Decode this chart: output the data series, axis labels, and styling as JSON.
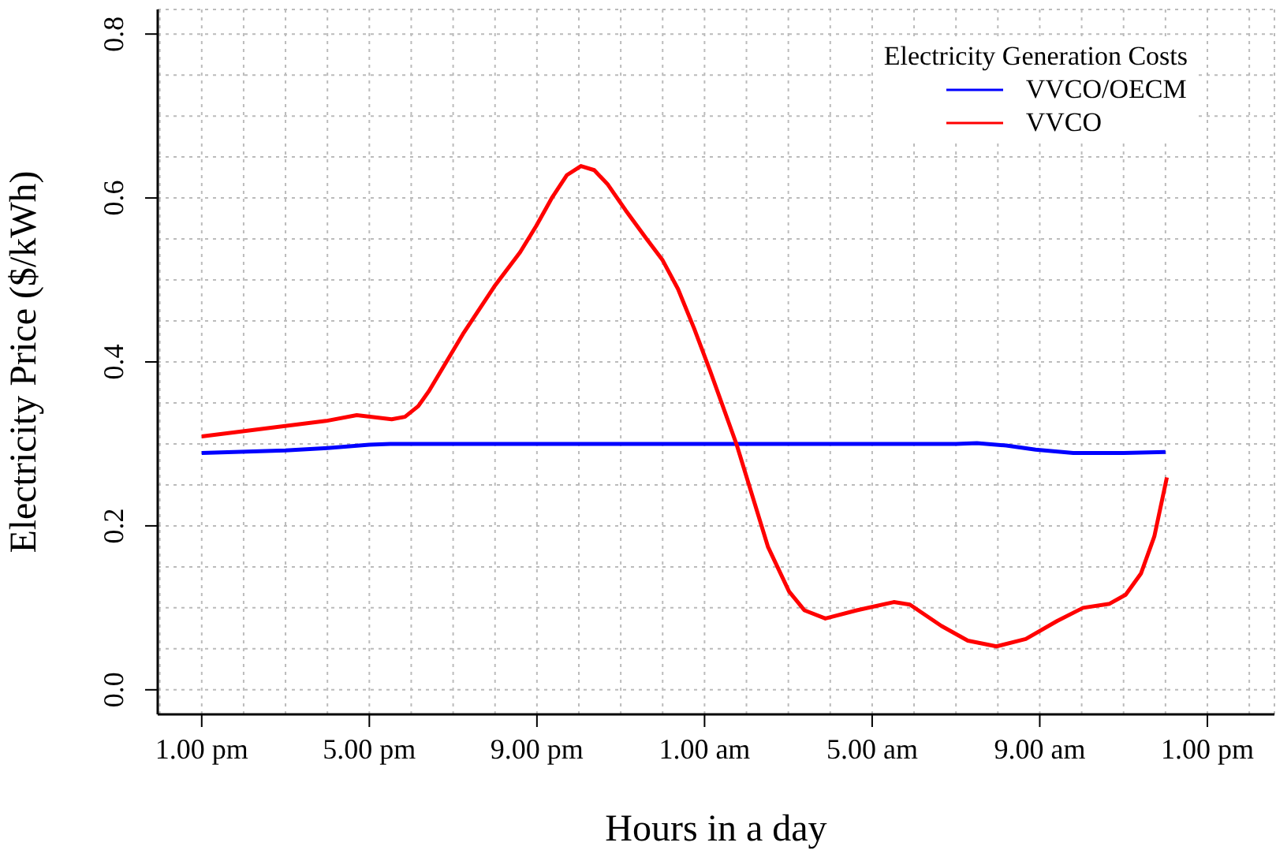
{
  "chart_data": {
    "type": "line",
    "xlabel": "Hours in a day",
    "ylabel": "Electricity Price ($/kWh)",
    "legend_title": "Electricity Generation Costs",
    "xlim": [
      "--01-01T11:57",
      "--01-02T14:36"
    ],
    "ylim": [
      -0.03,
      0.83
    ],
    "xticks": [
      {
        "value": "--01-01T12:00",
        "label": null
      },
      {
        "value": "--01-01T13:00",
        "label": "1.00 pm"
      },
      {
        "value": "--01-01T14:00",
        "label": null
      },
      {
        "value": "--01-01T15:00",
        "label": null
      },
      {
        "value": "--01-01T16:00",
        "label": null
      },
      {
        "value": "--01-01T17:00",
        "label": "5.00 pm"
      },
      {
        "value": "--01-01T18:00",
        "label": null
      },
      {
        "value": "--01-01T19:00",
        "label": null
      },
      {
        "value": "--01-01T20:00",
        "label": null
      },
      {
        "value": "--01-01T21:00",
        "label": "9.00 pm"
      },
      {
        "value": "--01-01T22:00",
        "label": null
      },
      {
        "value": "--01-01T23:00",
        "label": null
      },
      {
        "value": "--01-02T00:00",
        "label": null
      },
      {
        "value": "--01-02T01:00",
        "label": "1.00 am"
      },
      {
        "value": "--01-02T02:00",
        "label": null
      },
      {
        "value": "--01-02T03:00",
        "label": null
      },
      {
        "value": "--01-02T04:00",
        "label": null
      },
      {
        "value": "--01-02T05:00",
        "label": "5.00 am"
      },
      {
        "value": "--01-02T06:00",
        "label": null
      },
      {
        "value": "--01-02T07:00",
        "label": null
      },
      {
        "value": "--01-02T08:00",
        "label": null
      },
      {
        "value": "--01-02T09:00",
        "label": "9.00 am"
      },
      {
        "value": "--01-02T10:00",
        "label": null
      },
      {
        "value": "--01-02T11:00",
        "label": null
      },
      {
        "value": "--01-02T12:00",
        "label": null
      },
      {
        "value": "--01-02T13:00",
        "label": "1.00 pm"
      },
      {
        "value": "--01-02T14:00",
        "label": null
      }
    ],
    "yticks": [
      {
        "value": 0,
        "label": "0.0"
      },
      {
        "value": 0.05,
        "label": null
      },
      {
        "value": 0.1,
        "label": null
      },
      {
        "value": 0.15,
        "label": null
      },
      0.2,
      {
        "value": 0.25,
        "label": null
      },
      {
        "value": 0.3,
        "label": null
      },
      {
        "value": 0.35,
        "label": null
      },
      0.4,
      {
        "value": 0.45,
        "label": null
      },
      {
        "value": 0.5,
        "label": null
      },
      {
        "value": 0.55,
        "label": null
      },
      0.6,
      {
        "value": 0.65,
        "label": null
      },
      {
        "value": 0.7,
        "label": null
      },
      {
        "value": 0.75,
        "label": null
      },
      0.8
    ],
    "grid": true,
    "legend": "top right",
    "line_style": "solid",
    "marker": "none",
    "series": [
      {
        "name": "VVCO/OECM",
        "color": "#0000ff",
        "x": [
          "--01-01T13:00",
          "--01-01T15:00",
          "--01-01T16:00",
          "--01-01T17:00",
          "--01-01T17:30",
          "--01-01T20:00",
          "--01-02T00:00",
          "--01-02T04:00",
          "--01-02T07:00",
          "--01-02T07:30",
          "--01-02T08:12",
          "--01-02T08:54",
          "--01-02T09:48",
          "--01-02T11:00",
          "--01-02T12:00"
        ],
        "values": [
          0.289,
          0.292,
          0.295,
          0.299,
          0.3,
          0.3,
          0.3,
          0.3,
          0.3,
          0.301,
          0.298,
          0.293,
          0.289,
          0.289,
          0.29
        ]
      },
      {
        "name": "VVCO",
        "color": "#ff0000",
        "x": [
          "--01-01T13:00",
          "--01-01T15:58",
          "--01-01T16:42",
          "--01-01T17:32",
          "--01-01T17:51",
          "--01-01T18:10",
          "--01-01T18:25",
          "--01-01T19:14",
          "--01-01T19:59",
          "--01-01T20:36",
          "--01-01T20:59",
          "--01-01T21:22",
          "--01-01T21:43",
          "--01-01T22:03",
          "--01-01T22:22",
          "--01-01T22:41",
          "--01-01T23:07",
          "--01-01T23:37",
          "--01-02T00:00",
          "--01-02T00:22",
          "--01-02T00:45",
          "--01-02T01:08",
          "--01-02T01:46",
          "--01-02T02:31",
          "--01-02T03:01",
          "--01-02T03:23",
          "--01-02T03:53",
          "--01-02T04:38",
          "--01-02T05:31",
          "--01-02T05:54",
          "--01-02T06:39",
          "--01-02T07:17",
          "--01-02T07:58",
          "--01-02T08:40",
          "--01-02T09:25",
          "--01-02T10:02",
          "--01-02T10:40",
          "--01-02T11:03",
          "--01-02T11:25",
          "--01-02T11:44",
          "--01-02T12:02"
        ],
        "values": [
          0.309,
          0.328,
          0.335,
          0.33,
          0.333,
          0.346,
          0.364,
          0.434,
          0.492,
          0.534,
          0.566,
          0.601,
          0.628,
          0.639,
          0.634,
          0.617,
          0.585,
          0.55,
          0.524,
          0.489,
          0.441,
          0.389,
          0.299,
          0.174,
          0.12,
          0.097,
          0.087,
          0.097,
          0.107,
          0.104,
          0.078,
          0.06,
          0.053,
          0.062,
          0.084,
          0.1,
          0.105,
          0.116,
          0.142,
          0.187,
          0.259
        ]
      }
    ]
  }
}
